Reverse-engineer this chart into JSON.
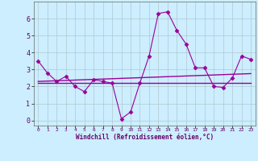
{
  "xlabel": "Windchill (Refroidissement éolien,°C)",
  "bg_color": "#cceeff",
  "grid_color": "#b0c8d0",
  "line_color": "#990099",
  "x_ticks": [
    0,
    1,
    2,
    3,
    4,
    5,
    6,
    7,
    8,
    9,
    10,
    11,
    12,
    13,
    14,
    15,
    16,
    17,
    18,
    19,
    20,
    21,
    22,
    23
  ],
  "y_ticks": [
    0,
    1,
    2,
    3,
    4,
    5,
    6
  ],
  "ylim": [
    -0.3,
    7.0
  ],
  "xlim": [
    -0.5,
    23.5
  ],
  "series1_x": [
    0,
    1,
    2,
    3,
    4,
    5,
    6,
    7,
    8,
    9,
    10,
    11,
    12,
    13,
    14,
    15,
    16,
    17,
    18,
    19,
    20,
    21,
    22,
    23
  ],
  "series1_y": [
    3.5,
    2.8,
    2.3,
    2.6,
    2.0,
    1.7,
    2.4,
    2.3,
    2.2,
    0.1,
    0.5,
    2.2,
    3.8,
    6.3,
    6.4,
    5.3,
    4.5,
    3.1,
    3.1,
    2.0,
    1.95,
    2.5,
    3.8,
    3.6
  ],
  "series2_x": [
    0,
    1,
    2,
    3,
    4,
    5,
    6,
    7,
    8,
    9,
    10,
    11,
    12,
    13,
    14,
    15,
    16,
    17,
    18,
    19,
    20,
    21,
    22,
    23
  ],
  "series2_y": [
    2.3,
    2.32,
    2.34,
    2.36,
    2.38,
    2.4,
    2.42,
    2.44,
    2.46,
    2.48,
    2.5,
    2.52,
    2.54,
    2.56,
    2.58,
    2.6,
    2.62,
    2.64,
    2.66,
    2.68,
    2.7,
    2.72,
    2.74,
    2.76
  ],
  "series3_x": [
    0,
    1,
    2,
    3,
    4,
    5,
    6,
    7,
    8,
    9,
    10,
    11,
    12,
    13,
    14,
    15,
    16,
    17,
    18,
    19,
    20,
    21,
    22,
    23
  ],
  "series3_y": [
    2.2,
    2.2,
    2.2,
    2.2,
    2.2,
    2.2,
    2.2,
    2.2,
    2.2,
    2.2,
    2.2,
    2.2,
    2.2,
    2.2,
    2.2,
    2.2,
    2.2,
    2.2,
    2.2,
    2.2,
    2.2,
    2.2,
    2.2,
    2.2
  ]
}
